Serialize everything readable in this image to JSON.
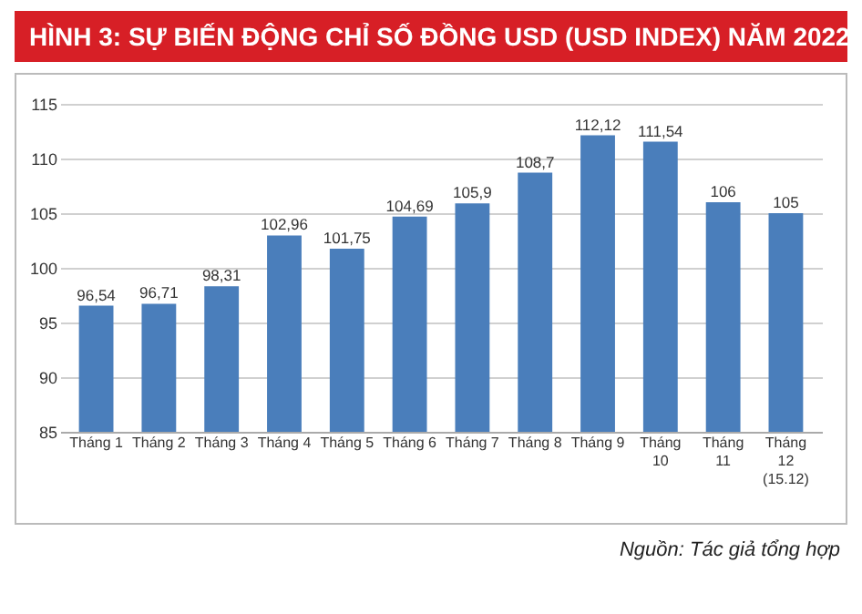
{
  "chart_data": {
    "type": "bar",
    "title": "HÌNH 3: SỰ BIẾN ĐỘNG CHỈ SỐ ĐỒNG USD (USD INDEX) NĂM 2022",
    "categories": [
      "Tháng 1",
      "Tháng 2",
      "Tháng 3",
      "Tháng 4",
      "Tháng 5",
      "Tháng 6",
      "Tháng 7",
      "Tháng 8",
      "Tháng 9",
      "Tháng 10",
      "Tháng 11",
      "Tháng 12 (15.12)"
    ],
    "values": [
      96.54,
      96.71,
      98.31,
      102.96,
      101.75,
      104.69,
      105.9,
      108.7,
      112.12,
      111.54,
      106,
      105
    ],
    "value_labels": [
      "96,54",
      "96,71",
      "98,31",
      "102,96",
      "101,75",
      "104,69",
      "105,9",
      "108,7",
      "112,12",
      "111,54",
      "106",
      "105"
    ],
    "color": "#4a7ebb",
    "ylim": [
      85,
      115
    ],
    "yticks": [
      85,
      90,
      95,
      100,
      105,
      110,
      115
    ],
    "grid": "y",
    "annotations": [
      "Nguồn: Tác giả tổng hợp"
    ]
  }
}
